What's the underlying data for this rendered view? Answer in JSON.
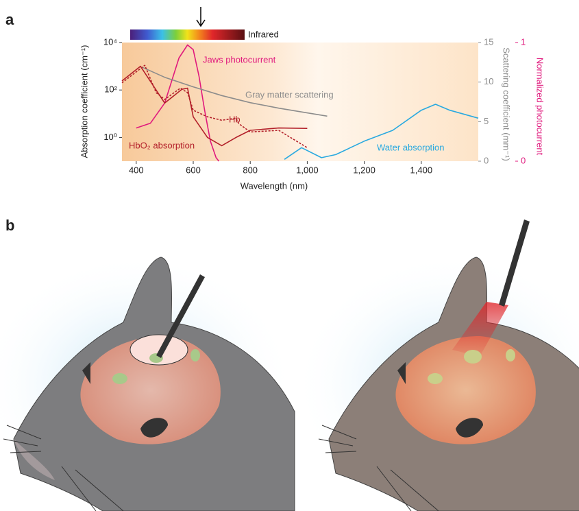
{
  "chart_data": {
    "type": "line",
    "panel_label": "a",
    "xlabel": "Wavelength (nm)",
    "ylabel": "Absorption coefficient (cm⁻¹)",
    "y2label": "Scattering coefficient (mm⁻¹)",
    "y3label": "Normalized photocurrent",
    "spectrum_label": "Infrared",
    "xlim": [
      350,
      1600
    ],
    "xticks": [
      400,
      600,
      800,
      {
        "value": 1000,
        "label": "1,000"
      },
      {
        "value": 1200,
        "label": "1,200"
      },
      {
        "value": 1400,
        "label": "1,400"
      }
    ],
    "yscale": "log",
    "ylim": [
      0.1,
      10000
    ],
    "yticks": [
      {
        "value": 1,
        "label": "10⁰"
      },
      {
        "value": 100,
        "label": "10²"
      },
      {
        "value": 10000,
        "label": "10⁴"
      }
    ],
    "y2lim": [
      0,
      15
    ],
    "y2ticks": [
      0,
      5,
      10,
      15
    ],
    "y2color": "#8c8c8c",
    "y3lim": [
      0,
      1
    ],
    "y3ticks": [
      0,
      1
    ],
    "y3color": "#e0197d",
    "series": [
      {
        "name": "Jaws photocurrent",
        "color": "#e0197d",
        "axis": "y3",
        "x": [
          400,
          450,
          500,
          550,
          580,
          600,
          620,
          640,
          660,
          680,
          690
        ],
        "values": [
          0.28,
          0.32,
          0.49,
          0.87,
          0.98,
          0.94,
          0.72,
          0.43,
          0.17,
          0.03,
          0
        ]
      },
      {
        "name": "Gray matter scattering",
        "color": "#8c8c8c",
        "axis": "y2",
        "x": [
          420,
          500,
          600,
          700,
          800,
          900,
          1000,
          1070
        ],
        "values": [
          11.9,
          10.6,
          9.4,
          8.3,
          7.4,
          6.7,
          6.1,
          5.7
        ]
      },
      {
        "name": "Hb",
        "color": "#b3202a",
        "dashed": true,
        "x": [
          350,
          430,
          470,
          500,
          555,
          580,
          600,
          650,
          700,
          750,
          760,
          800,
          900,
          1000
        ],
        "values": [
          200,
          1100,
          77,
          40,
          120,
          77,
          14,
          7.4,
          5.3,
          6.5,
          3.8,
          1.7,
          2,
          0.37
        ]
      },
      {
        "name": "HbO₂ absorption",
        "color": "#b3202a",
        "x": [
          350,
          415,
          500,
          560,
          580,
          600,
          650,
          700,
          750,
          800,
          900,
          1000
        ],
        "values": [
          240,
          1000,
          28,
          107,
          120,
          7.4,
          1,
          0.45,
          1,
          2,
          2.5,
          2.4
        ]
      },
      {
        "name": "Water absorption",
        "color": "#29a9e0",
        "x": [
          920,
          980,
          1050,
          1100,
          1200,
          1300,
          1400,
          1450,
          1500,
          1600
        ],
        "values": [
          0.12,
          0.37,
          0.14,
          0.19,
          0.7,
          2,
          14,
          25,
          14,
          6.5
        ]
      }
    ]
  },
  "panel_b": {
    "label": "b"
  }
}
